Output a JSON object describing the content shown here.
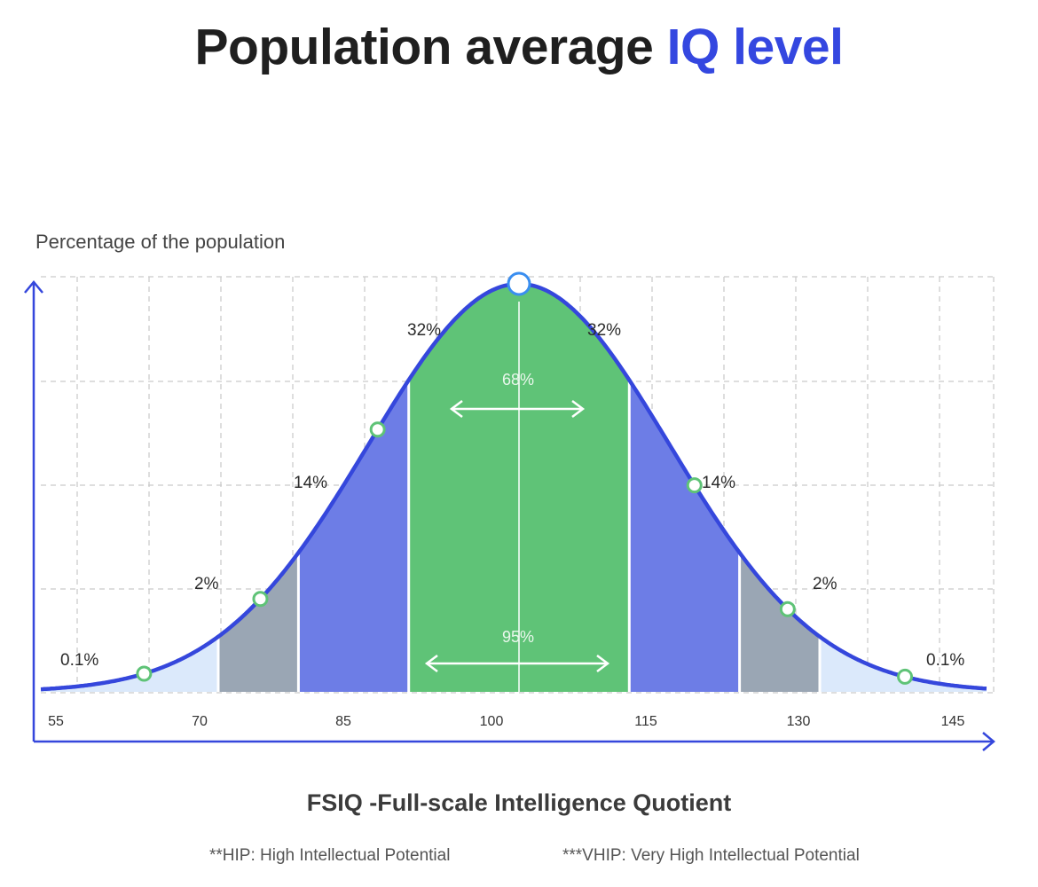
{
  "title": {
    "main": "Population average",
    "accent": "IQ level"
  },
  "footnotes": {
    "hip": "**HIP: High Intellectual Potential",
    "vhip": "***VHIP: Very High Intellectual Potential"
  },
  "chart_data": {
    "type": "area",
    "ylabel": "Percentage of the population",
    "xlabel": "FSIQ -Full-scale Intelligence Quotient",
    "x_ticks": [
      55,
      70,
      85,
      100,
      115,
      130,
      145
    ],
    "grid": true,
    "distribution": {
      "mean": 100,
      "sd": 15
    },
    "bands": [
      {
        "from": 52,
        "to": 70,
        "label": "0.1%",
        "color": "#dbe9fb"
      },
      {
        "from": 70,
        "to": 78,
        "label": "2%",
        "color": "#9aa6b4"
      },
      {
        "from": 78,
        "to": 89,
        "label": "14%",
        "color": "#6d7de6"
      },
      {
        "from": 89,
        "to": 100,
        "label": "32%",
        "color": "#5fc377"
      },
      {
        "from": 100,
        "to": 111,
        "label": "32%",
        "color": "#5fc377"
      },
      {
        "from": 111,
        "to": 122,
        "label": "14%",
        "color": "#6d7de6"
      },
      {
        "from": 122,
        "to": 130,
        "label": "2%",
        "color": "#9aa6b4"
      },
      {
        "from": 130,
        "to": 148,
        "label": "0.1%",
        "color": "#dbe9fb"
      }
    ],
    "inner_labels": {
      "range_68": "68%",
      "range_95": "95%"
    },
    "curve_color": "#3547dc",
    "marker_color": "#5fc377"
  }
}
